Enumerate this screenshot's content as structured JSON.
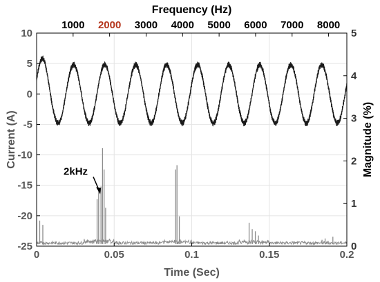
{
  "chart_data": [
    {
      "type": "line",
      "name": "current-waveform",
      "xlabel": "Time (Sec)",
      "ylabel": "Current (A)",
      "xlim": [
        0,
        0.2
      ],
      "ylim": [
        -25,
        10
      ],
      "xticks": [
        "0",
        "0.05",
        "0.1",
        "0.15",
        "0.2"
      ],
      "yticks": [
        "10",
        "5",
        "0",
        "-5",
        "-10",
        "-15",
        "-20",
        "-25"
      ],
      "fundamental_hz": 50,
      "amplitude": 4.8,
      "switching_ripple_amplitude": 0.45,
      "peak_near_start": 6.3,
      "color": "#1a1a1a"
    },
    {
      "type": "line",
      "name": "harmonic-spectrum",
      "x2label": "Frequency (Hz)",
      "y2label": "Magnitude (%)",
      "x2lim": [
        0,
        8500
      ],
      "y2lim": [
        0,
        5
      ],
      "x2ticks": [
        "1000",
        "2000",
        "3000",
        "4000",
        "5000",
        "6000",
        "7000",
        "8000"
      ],
      "highlighted_tick": "2000",
      "highlight_color": "#b5351c",
      "y2ticks": [
        "5",
        "4",
        "3",
        "2",
        "1",
        "0"
      ],
      "color": "#8c8c8c",
      "peaks": [
        {
          "x": 0.002,
          "y": 0.6
        },
        {
          "x": 0.004,
          "y": 0.5
        },
        {
          "x": 0.039,
          "y": 1.1
        },
        {
          "x": 0.04,
          "y": 1.3
        },
        {
          "x": 0.0415,
          "y": 1.4
        },
        {
          "x": 0.0425,
          "y": 2.3
        },
        {
          "x": 0.0435,
          "y": 1.8
        },
        {
          "x": 0.0445,
          "y": 0.9
        },
        {
          "x": 0.0895,
          "y": 1.8
        },
        {
          "x": 0.0905,
          "y": 1.9
        },
        {
          "x": 0.092,
          "y": 0.7
        },
        {
          "x": 0.137,
          "y": 0.55
        },
        {
          "x": 0.139,
          "y": 0.4
        },
        {
          "x": 0.141,
          "y": 0.35
        },
        {
          "x": 0.143,
          "y": 0.25
        },
        {
          "x": 0.184,
          "y": 0.15
        },
        {
          "x": 0.186,
          "y": 0.18
        },
        {
          "x": 0.188,
          "y": 0.12
        },
        {
          "x": 0.191,
          "y": 0.22
        },
        {
          "x": 0.193,
          "y": 0.1
        }
      ],
      "annotation": {
        "text": "2kHz",
        "x": 0.041,
        "y": 1.22
      }
    }
  ]
}
